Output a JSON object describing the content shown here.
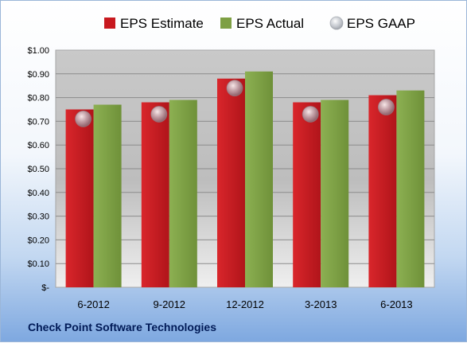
{
  "chart_data": {
    "type": "bar",
    "categories": [
      "6-2012",
      "9-2012",
      "12-2012",
      "3-2013",
      "6-2013"
    ],
    "series": [
      {
        "name": "EPS Estimate",
        "color": "#c8191f",
        "values": [
          0.75,
          0.78,
          0.88,
          0.78,
          0.81
        ]
      },
      {
        "name": "EPS Actual",
        "color": "#7ea044",
        "values": [
          0.77,
          0.79,
          0.91,
          0.79,
          0.83
        ]
      },
      {
        "name": "EPS GAAP",
        "color": "#b8bcc4",
        "marker": "circle",
        "values": [
          0.71,
          0.73,
          0.84,
          0.73,
          0.76
        ]
      }
    ],
    "y_ticks": [
      "$-",
      "$0.10",
      "$0.20",
      "$0.30",
      "$0.40",
      "$0.50",
      "$0.60",
      "$0.70",
      "$0.80",
      "$0.90",
      "$1.00"
    ],
    "ylim": [
      0,
      1.0
    ],
    "grid": true,
    "legend_position": "top",
    "footer": "Check Point Software Technologies"
  }
}
